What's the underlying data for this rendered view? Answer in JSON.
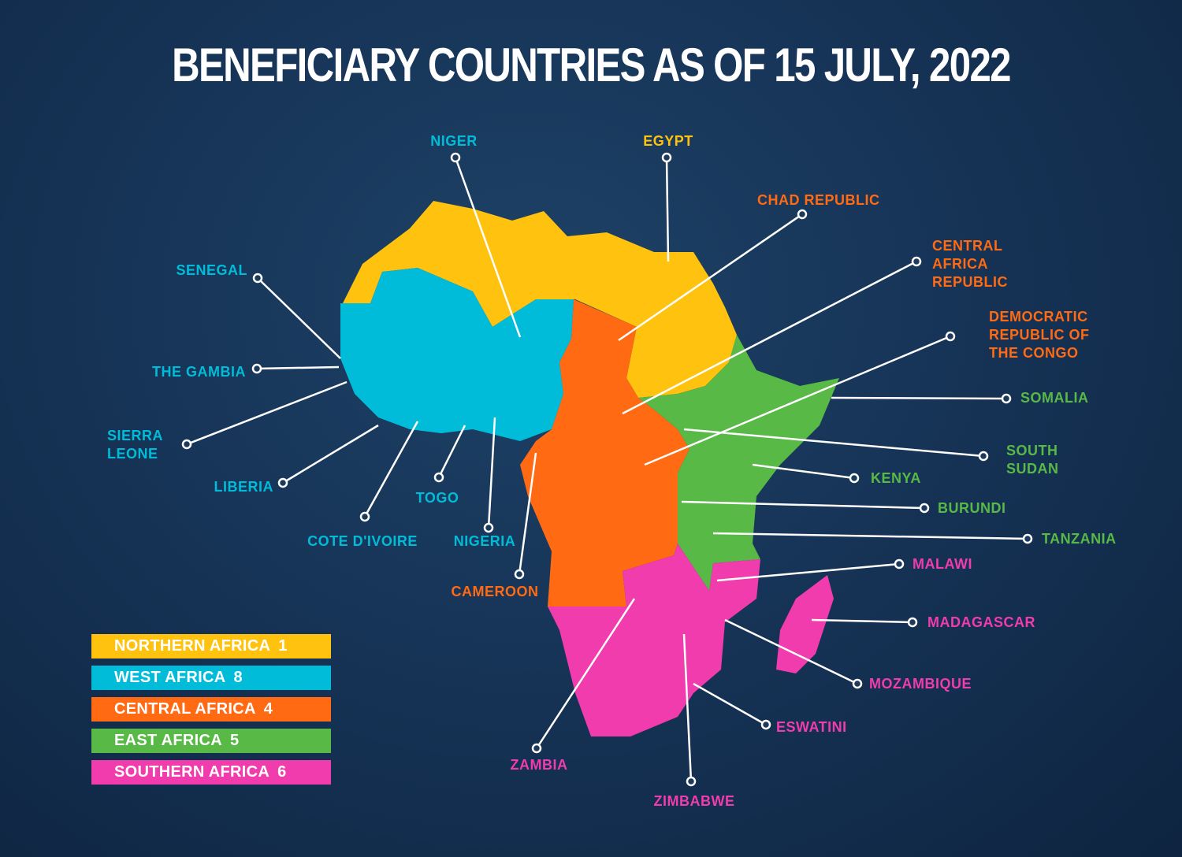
{
  "title": "BENEFICIARY COUNTRIES AS OF 15 JULY, 2022",
  "regions": [
    {
      "name": "NORTHERN AFRICA",
      "count": 1,
      "color": "#ffc20e",
      "countries": [
        "EGYPT"
      ]
    },
    {
      "name": "WEST AFRICA",
      "count": 8,
      "color": "#00bcd9",
      "countries": [
        "NIGER",
        "SENEGAL",
        "THE GAMBIA",
        "SIERRA LEONE",
        "LIBERIA",
        "COTE D'IVOIRE",
        "TOGO",
        "NIGERIA"
      ]
    },
    {
      "name": "CENTRAL AFRICA",
      "count": 4,
      "color": "#ff6a13",
      "countries": [
        "CHAD REPUBLIC",
        "CENTRAL AFRICA REPUBLIC",
        "DEMOCRATIC REPUBLIC OF THE CONGO",
        "CAMEROON"
      ]
    },
    {
      "name": "EAST AFRICA",
      "count": 5,
      "color": "#58b947",
      "countries": [
        "SOMALIA",
        "SOUTH SUDAN",
        "KENYA",
        "BURUNDI",
        "TANZANIA"
      ]
    },
    {
      "name": "SOUTHERN AFRICA",
      "count": 6,
      "color": "#f03cac",
      "countries": [
        "MALAWI",
        "MADAGASCAR",
        "MOZAMBIQUE",
        "ESWATINI",
        "ZAMBIA",
        "ZIMBABWE"
      ]
    }
  ]
}
